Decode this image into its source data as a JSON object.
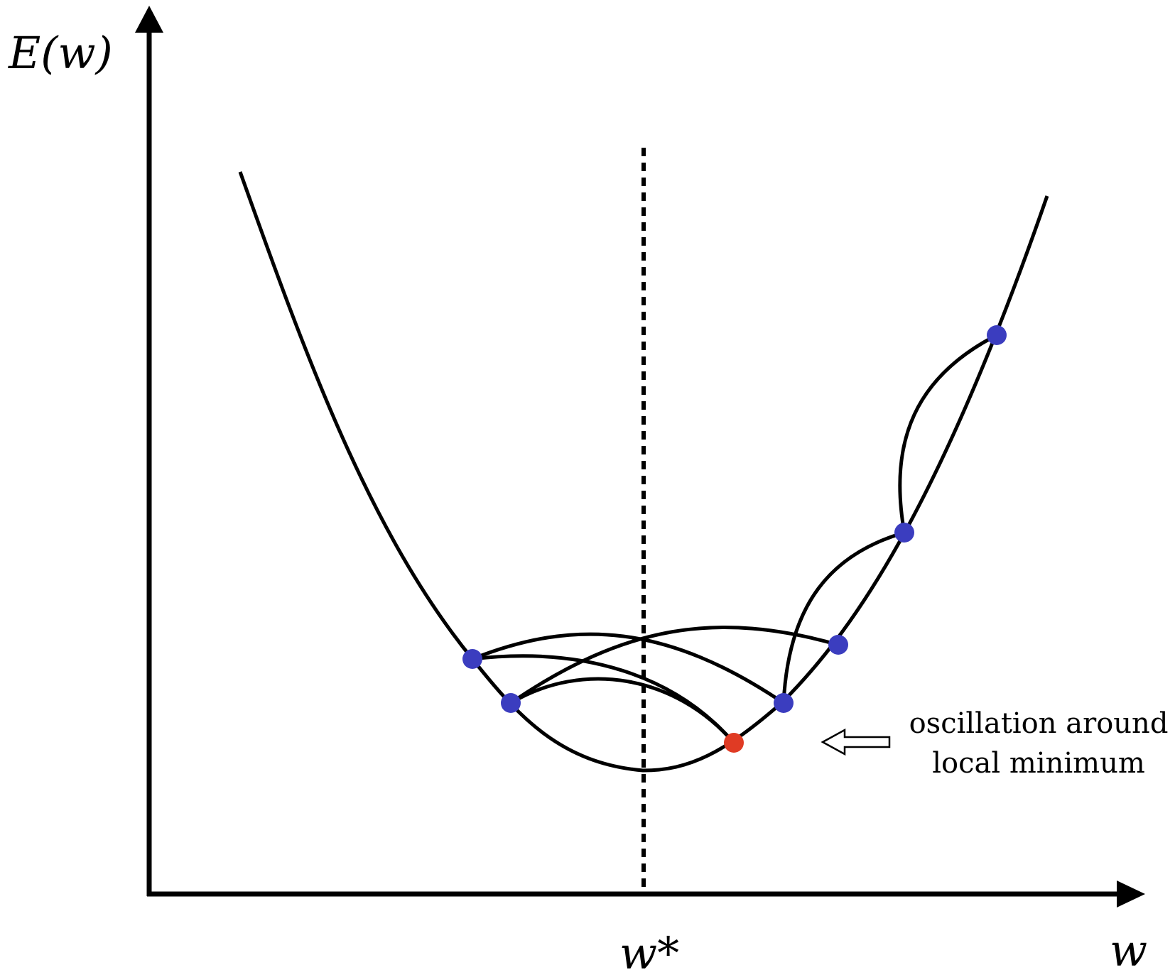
{
  "axes": {
    "y_label": "E(w)",
    "x_label": "w",
    "min_label": "w*"
  },
  "annotation": {
    "line1": "oscillation around",
    "line2": "local minimum"
  },
  "colors": {
    "stroke": "#000000",
    "step_point": "#3b3dbf",
    "final_point": "#e03b24",
    "background": "#ffffff"
  },
  "icons": {
    "annotation_arrow": "hollow-left-arrow-icon"
  }
}
